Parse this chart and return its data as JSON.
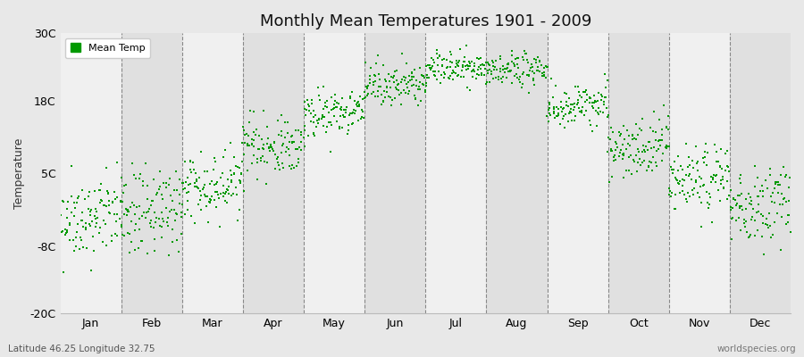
{
  "title": "Monthly Mean Temperatures 1901 - 2009",
  "ylabel": "Temperature",
  "xlabel_labels": [
    "Jan",
    "Feb",
    "Mar",
    "Apr",
    "May",
    "Jun",
    "Jul",
    "Aug",
    "Sep",
    "Oct",
    "Nov",
    "Dec"
  ],
  "yticks": [
    -20,
    -8,
    5,
    18,
    30
  ],
  "ytick_labels": [
    "-20C",
    "-8C",
    "5C",
    "18C",
    "30C"
  ],
  "ylim": [
    -20,
    30
  ],
  "xlim": [
    0,
    12
  ],
  "dot_color": "#009900",
  "bg_color": "#e8e8e8",
  "plot_bg_color_light": "#f0f0f0",
  "plot_bg_color_dark": "#e0e0e0",
  "legend_label": "Mean Temp",
  "footer_left": "Latitude 46.25 Longitude 32.75",
  "footer_right": "worldspecies.org",
  "monthly_means": [
    -3.5,
    -2.5,
    2.5,
    9.5,
    15.5,
    20.5,
    23.5,
    23.0,
    16.5,
    9.5,
    3.5,
    -1.0
  ],
  "monthly_stds": [
    3.5,
    3.8,
    3.0,
    2.5,
    2.0,
    1.8,
    1.5,
    1.5,
    2.0,
    2.5,
    3.0,
    3.5
  ],
  "n_years": 109,
  "seed": 42,
  "warming_trend": 0.008
}
